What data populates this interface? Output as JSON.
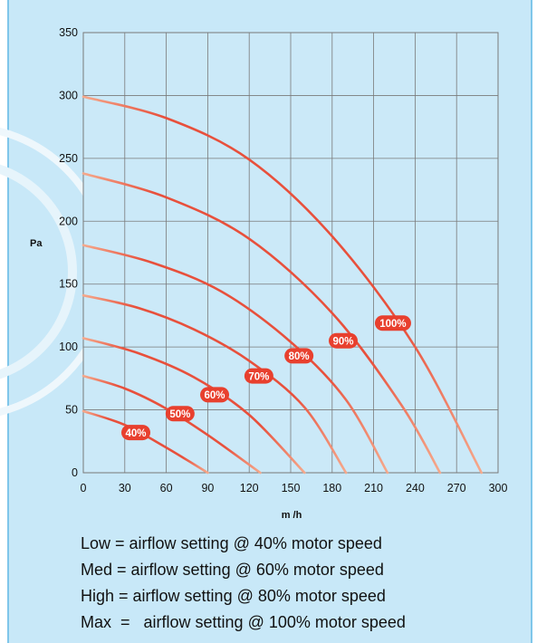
{
  "chart_data": {
    "type": "line",
    "title": "",
    "xlabel": "m /h",
    "ylabel": "Pa",
    "xlim": [
      0,
      300
    ],
    "ylim": [
      0,
      350
    ],
    "xticks": [
      0,
      30,
      60,
      90,
      120,
      150,
      180,
      210,
      240,
      270,
      300
    ],
    "yticks": [
      0,
      50,
      100,
      150,
      200,
      250,
      300,
      350
    ],
    "grid": true,
    "series": [
      {
        "name": "40%",
        "x": [
          0,
          30,
          60,
          90
        ],
        "y": [
          49,
          38,
          20,
          0
        ],
        "label_at": [
          38,
          32
        ]
      },
      {
        "name": "50%",
        "x": [
          0,
          30,
          60,
          90,
          128
        ],
        "y": [
          77,
          67,
          51,
          30,
          0
        ],
        "label_at": [
          70,
          47
        ]
      },
      {
        "name": "60%",
        "x": [
          0,
          40,
          80,
          120,
          160
        ],
        "y": [
          107,
          95,
          76,
          46,
          0
        ],
        "label_at": [
          95,
          62
        ]
      },
      {
        "name": "70%",
        "x": [
          0,
          40,
          80,
          120,
          160,
          190
        ],
        "y": [
          141,
          131,
          114,
          89,
          52,
          0
        ],
        "label_at": [
          127,
          77
        ]
      },
      {
        "name": "80%",
        "x": [
          0,
          50,
          100,
          150,
          190,
          220
        ],
        "y": [
          181,
          167,
          144,
          104,
          58,
          0
        ],
        "label_at": [
          156,
          93
        ]
      },
      {
        "name": "90%",
        "x": [
          0,
          60,
          120,
          180,
          230,
          258
        ],
        "y": [
          238,
          219,
          186,
          127,
          54,
          0
        ],
        "label_at": [
          188,
          105
        ]
      },
      {
        "name": "100%",
        "x": [
          0,
          60,
          120,
          180,
          240,
          288
        ],
        "y": [
          299,
          282,
          249,
          188,
          100,
          0
        ],
        "label_at": [
          224,
          119
        ]
      }
    ],
    "colors": {
      "curve": "#e8503c",
      "curve_light": "#f5a98c",
      "label_bg": "#e8402e",
      "label_text": "#ffffff",
      "grid": "#7a7a7a",
      "plot_bg": "#cbe9f8",
      "panel_bg": "#c8e8f8"
    }
  },
  "notes": [
    "Low = airflow setting @ 40% motor speed",
    "Med = airflow setting @ 60% motor speed",
    "High = airflow setting @ 80% motor speed",
    "Max  =   airflow setting @ 100% motor speed"
  ]
}
